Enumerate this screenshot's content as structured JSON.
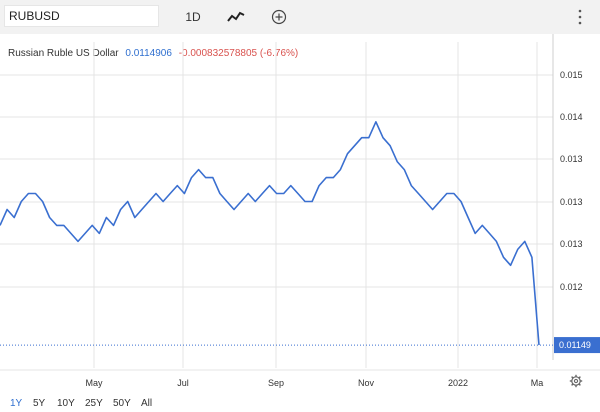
{
  "toolbar": {
    "symbol": "RUBUSD",
    "interval": "1D",
    "chart_style_icon": "line-chart-icon",
    "add_icon": "plus-circle-icon",
    "menu_icon": "vertical-dots-icon"
  },
  "legend": {
    "name": "Russian Ruble US Dollar",
    "last": "0.0114906",
    "change": "-0.000832578805 (-6.76%)"
  },
  "colors": {
    "line": "#3a6fd0",
    "last_color": "#2f6fcf",
    "negative": "#d9534f",
    "grid": "#e4e4e4",
    "toolbar_bg": "#f2f2f2"
  },
  "ranges": [
    "1Y",
    "5Y",
    "10Y",
    "25Y",
    "50Y",
    "All"
  ],
  "active_range": "1Y",
  "settings_icon": "gear-icon",
  "chart_data": {
    "type": "line",
    "series": [
      {
        "values": [
          0.013,
          0.0132,
          0.0131,
          0.0133,
          0.0134,
          0.0134,
          0.0133,
          0.0131,
          0.013,
          0.013,
          0.0129,
          0.0128,
          0.0129,
          0.013,
          0.0129,
          0.0131,
          0.013,
          0.0132,
          0.0133,
          0.0131,
          0.0132,
          0.0133,
          0.0134,
          0.0133,
          0.0134,
          0.0135,
          0.0134,
          0.0136,
          0.0137,
          0.0136,
          0.0136,
          0.0134,
          0.0133,
          0.0132,
          0.0133,
          0.0134,
          0.0133,
          0.0134,
          0.0135,
          0.0134,
          0.0134,
          0.0135,
          0.0134,
          0.0133,
          0.0133,
          0.0135,
          0.0136,
          0.0136,
          0.0137,
          0.0139,
          0.014,
          0.0141,
          0.0141,
          0.0143,
          0.0141,
          0.014,
          0.0138,
          0.0137,
          0.0135,
          0.0134,
          0.0133,
          0.0132,
          0.0133,
          0.0134,
          0.0134,
          0.0133,
          0.0131,
          0.0129,
          0.013,
          0.0129,
          0.0128,
          0.0126,
          0.0125,
          0.0127,
          0.0128,
          0.0126,
          0.0115
        ],
        "y_ticks": [
          "0.015",
          "0.014",
          "0.013",
          "0.013",
          "0.013",
          "0.012",
          "0.01149"
        ]
      }
    ],
    "x_tick_labels": [
      "May",
      "Jul",
      "Sep",
      "Nov",
      "2022",
      "Ma"
    ],
    "ylim": [
      0.0112,
      0.0153
    ],
    "grid": true,
    "last_value_label": "0.01149"
  }
}
